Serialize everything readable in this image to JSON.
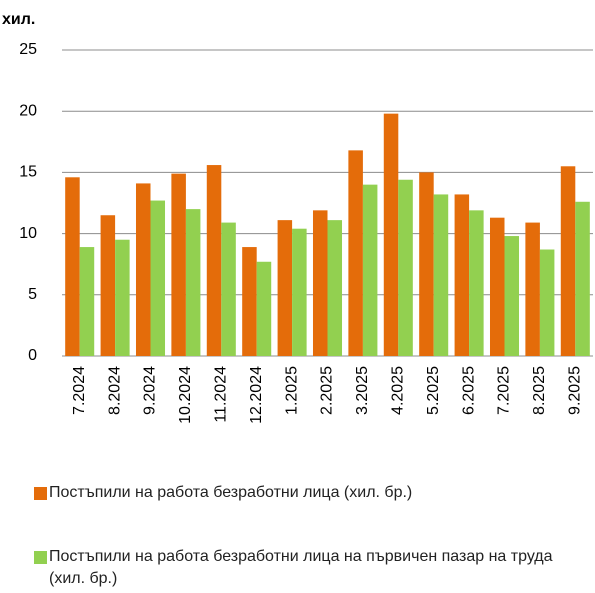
{
  "chart_data": {
    "type": "bar",
    "ylabel": "хил.",
    "categories": [
      "7.2024",
      "8.2024",
      "9.2024",
      "10.2024",
      "11.2024",
      "12.2024",
      "1.2025",
      "2.2025",
      "3.2025",
      "4.2025",
      "5.2025",
      "6.2025",
      "7.2025",
      "8.2025",
      "9.2025"
    ],
    "series": [
      {
        "name": "Постъпили на работа безработни лица  (хил. бр.)",
        "color": "#e46c0a",
        "values": [
          14.6,
          11.5,
          14.1,
          14.9,
          15.6,
          8.9,
          11.1,
          11.9,
          16.8,
          19.8,
          15.0,
          13.2,
          11.3,
          10.9,
          15.5
        ]
      },
      {
        "name": "Постъпили на работа безработни лица на първичен пазар на труда  (хил. бр.)",
        "color": "#92d050",
        "values": [
          8.9,
          9.5,
          12.7,
          12.0,
          10.9,
          7.7,
          10.4,
          11.1,
          14.0,
          14.4,
          13.2,
          11.9,
          9.8,
          8.7,
          12.6
        ]
      }
    ],
    "ylim": [
      0,
      25
    ],
    "yticks": [
      0,
      5,
      10,
      15,
      20,
      25
    ],
    "grid": true
  }
}
